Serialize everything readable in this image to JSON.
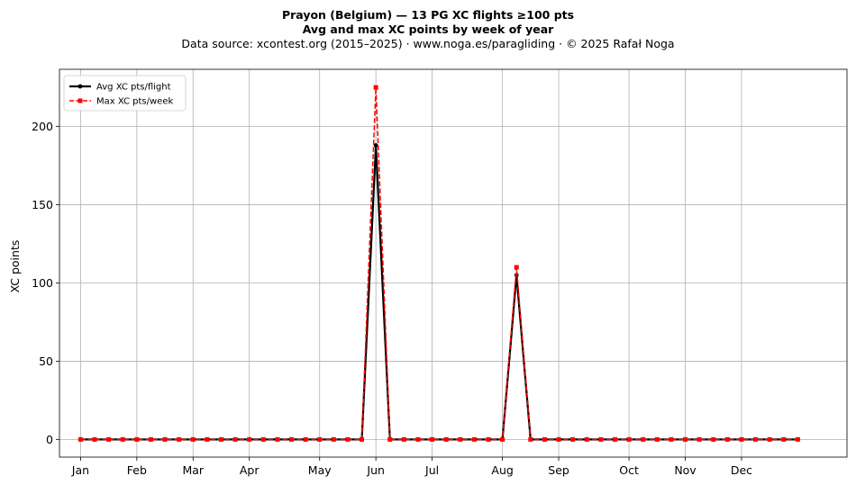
{
  "chart_data": {
    "type": "line",
    "title": "Prayon (Belgium)  —  13 PG XC flights ≥100 pts",
    "subtitle": "Avg and max XC points by week of year",
    "source": "Data source: xcontest.org (2015–2025)  ·  www.noga.es/paragliding  ·  © 2025 Rafał Noga",
    "xlabel": "",
    "ylabel": "XC points",
    "x_axis": "week of year",
    "xlim": [
      -1.5,
      54.5
    ],
    "ylim": [
      -11.3,
      236.6
    ],
    "yticks": [
      0,
      50,
      100,
      150,
      200
    ],
    "month_ticks": [
      {
        "label": "Jan",
        "week": 0
      },
      {
        "label": "Feb",
        "week": 4
      },
      {
        "label": "Mar",
        "week": 8
      },
      {
        "label": "Apr",
        "week": 12
      },
      {
        "label": "May",
        "week": 17
      },
      {
        "label": "Jun",
        "week": 21
      },
      {
        "label": "Jul",
        "week": 25
      },
      {
        "label": "Aug",
        "week": 30
      },
      {
        "label": "Sep",
        "week": 34
      },
      {
        "label": "Oct",
        "week": 39
      },
      {
        "label": "Nov",
        "week": 43
      },
      {
        "label": "Dec",
        "week": 47
      }
    ],
    "grid": true,
    "legend": "top-left",
    "series": [
      {
        "name": "Avg XC pts/flight",
        "color": "#000000",
        "style": "solid",
        "marker": "circle",
        "x": [
          0,
          1,
          2,
          3,
          4,
          5,
          6,
          7,
          8,
          9,
          10,
          11,
          12,
          13,
          14,
          15,
          16,
          17,
          18,
          19,
          20,
          21,
          22,
          23,
          24,
          25,
          26,
          27,
          28,
          29,
          30,
          31,
          32,
          33,
          34,
          35,
          36,
          37,
          38,
          39,
          40,
          41,
          42,
          43,
          44,
          45,
          46,
          47,
          48,
          49,
          50,
          51
        ],
        "values": [
          0,
          0,
          0,
          0,
          0,
          0,
          0,
          0,
          0,
          0,
          0,
          0,
          0,
          0,
          0,
          0,
          0,
          0,
          0,
          0,
          0,
          188,
          0,
          0,
          0,
          0,
          0,
          0,
          0,
          0,
          0,
          105,
          0,
          0,
          0,
          0,
          0,
          0,
          0,
          0,
          0,
          0,
          0,
          0,
          0,
          0,
          0,
          0,
          0,
          0,
          0,
          0
        ]
      },
      {
        "name": "Max XC pts/week",
        "color": "#ff0000",
        "style": "dashed",
        "marker": "square",
        "x": [
          0,
          1,
          2,
          3,
          4,
          5,
          6,
          7,
          8,
          9,
          10,
          11,
          12,
          13,
          14,
          15,
          16,
          17,
          18,
          19,
          20,
          21,
          22,
          23,
          24,
          25,
          26,
          27,
          28,
          29,
          30,
          31,
          32,
          33,
          34,
          35,
          36,
          37,
          38,
          39,
          40,
          41,
          42,
          43,
          44,
          45,
          46,
          47,
          48,
          49,
          50,
          51
        ],
        "values": [
          0,
          0,
          0,
          0,
          0,
          0,
          0,
          0,
          0,
          0,
          0,
          0,
          0,
          0,
          0,
          0,
          0,
          0,
          0,
          0,
          0,
          225,
          0,
          0,
          0,
          0,
          0,
          0,
          0,
          0,
          0,
          110,
          0,
          0,
          0,
          0,
          0,
          0,
          0,
          0,
          0,
          0,
          0,
          0,
          0,
          0,
          0,
          0,
          0,
          0,
          0,
          0
        ]
      }
    ]
  }
}
